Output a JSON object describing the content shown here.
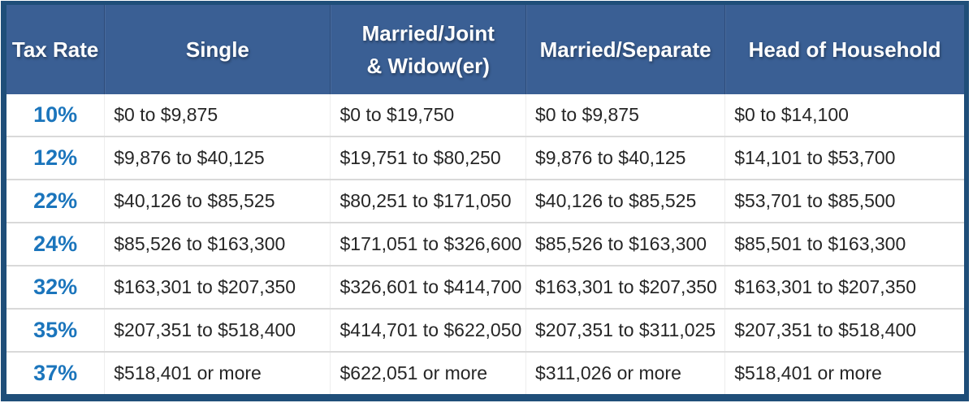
{
  "chart_data": {
    "type": "table",
    "columns": [
      "Tax Rate",
      "Single",
      "Married/Joint\n& Widow(er)",
      "Married/Separate",
      "Head of Household"
    ],
    "rows": [
      [
        "10%",
        "$0 to $9,875",
        "$0 to $19,750",
        "$0 to $9,875",
        "$0 to $14,100"
      ],
      [
        "12%",
        "$9,876 to $40,125",
        "$19,751 to $80,250",
        "$9,876 to $40,125",
        "$14,101 to $53,700"
      ],
      [
        "22%",
        "$40,126 to $85,525",
        "$80,251 to $171,050",
        "$40,126 to $85,525",
        "$53,701 to $85,500"
      ],
      [
        "24%",
        "$85,526 to $163,300",
        "$171,051 to $326,600",
        "$85,526 to $163,300",
        "$85,501 to $163,300"
      ],
      [
        "32%",
        "$163,301 to $207,350",
        "$326,601 to $414,700",
        "$163,301 to $207,350",
        "$163,301 to $207,350"
      ],
      [
        "35%",
        "$207,351 to $518,400",
        "$414,701 to $622,050",
        "$207,351 to $311,025",
        "$207,351 to $518,400"
      ],
      [
        "37%",
        "$518,401 or more",
        "$622,051 or more",
        "$311,026 or more",
        "$518,401 or more"
      ]
    ]
  },
  "colors": {
    "header_background": "#3a5f94",
    "header_text": "#ffffff",
    "tax_rate_text": "#1b75bc",
    "body_text": "#262626",
    "outer_border": "#1f4e79",
    "row_divider": "#d9d9d9"
  }
}
